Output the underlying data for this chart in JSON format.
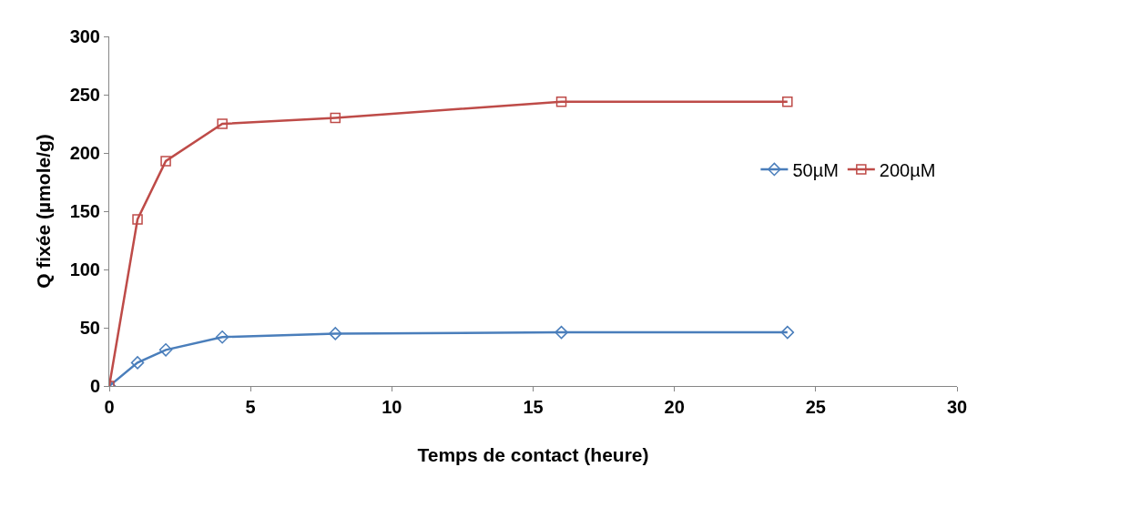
{
  "chart_data": {
    "type": "line",
    "xlabel": "Temps de contact (heure)",
    "ylabel": "Q fixée (µmole/g)",
    "series": [
      {
        "name": "50µM",
        "color": "#4a7ebb",
        "marker": "diamond",
        "x": [
          0,
          1,
          2,
          4,
          8,
          16,
          24
        ],
        "values": [
          0,
          20,
          31,
          42,
          45,
          46,
          46
        ]
      },
      {
        "name": "200µM",
        "color": "#be4b48",
        "marker": "square",
        "x": [
          0,
          1,
          2,
          4,
          8,
          16,
          24
        ],
        "values": [
          0,
          143,
          193,
          225,
          230,
          244,
          244
        ]
      }
    ],
    "xlim": [
      0,
      30
    ],
    "xticks": [
      0,
      5,
      10,
      15,
      20,
      25,
      30
    ],
    "ylim": [
      0,
      300
    ],
    "yticks": [
      0,
      50,
      100,
      150,
      200,
      250,
      300
    ],
    "legend": "right",
    "line_style": "solid"
  }
}
